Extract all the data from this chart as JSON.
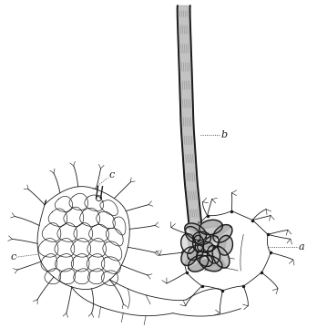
{
  "background_color": "#ffffff",
  "ink_color": "#1a1a1a",
  "dark_color": "#333333",
  "gray_color": "#888888",
  "light_gray": "#cccccc",
  "label_a": "a",
  "label_b": "b",
  "label_c_top": "c",
  "label_c_left": "c",
  "fig_width": 3.48,
  "fig_height": 3.6,
  "dpi": 100
}
